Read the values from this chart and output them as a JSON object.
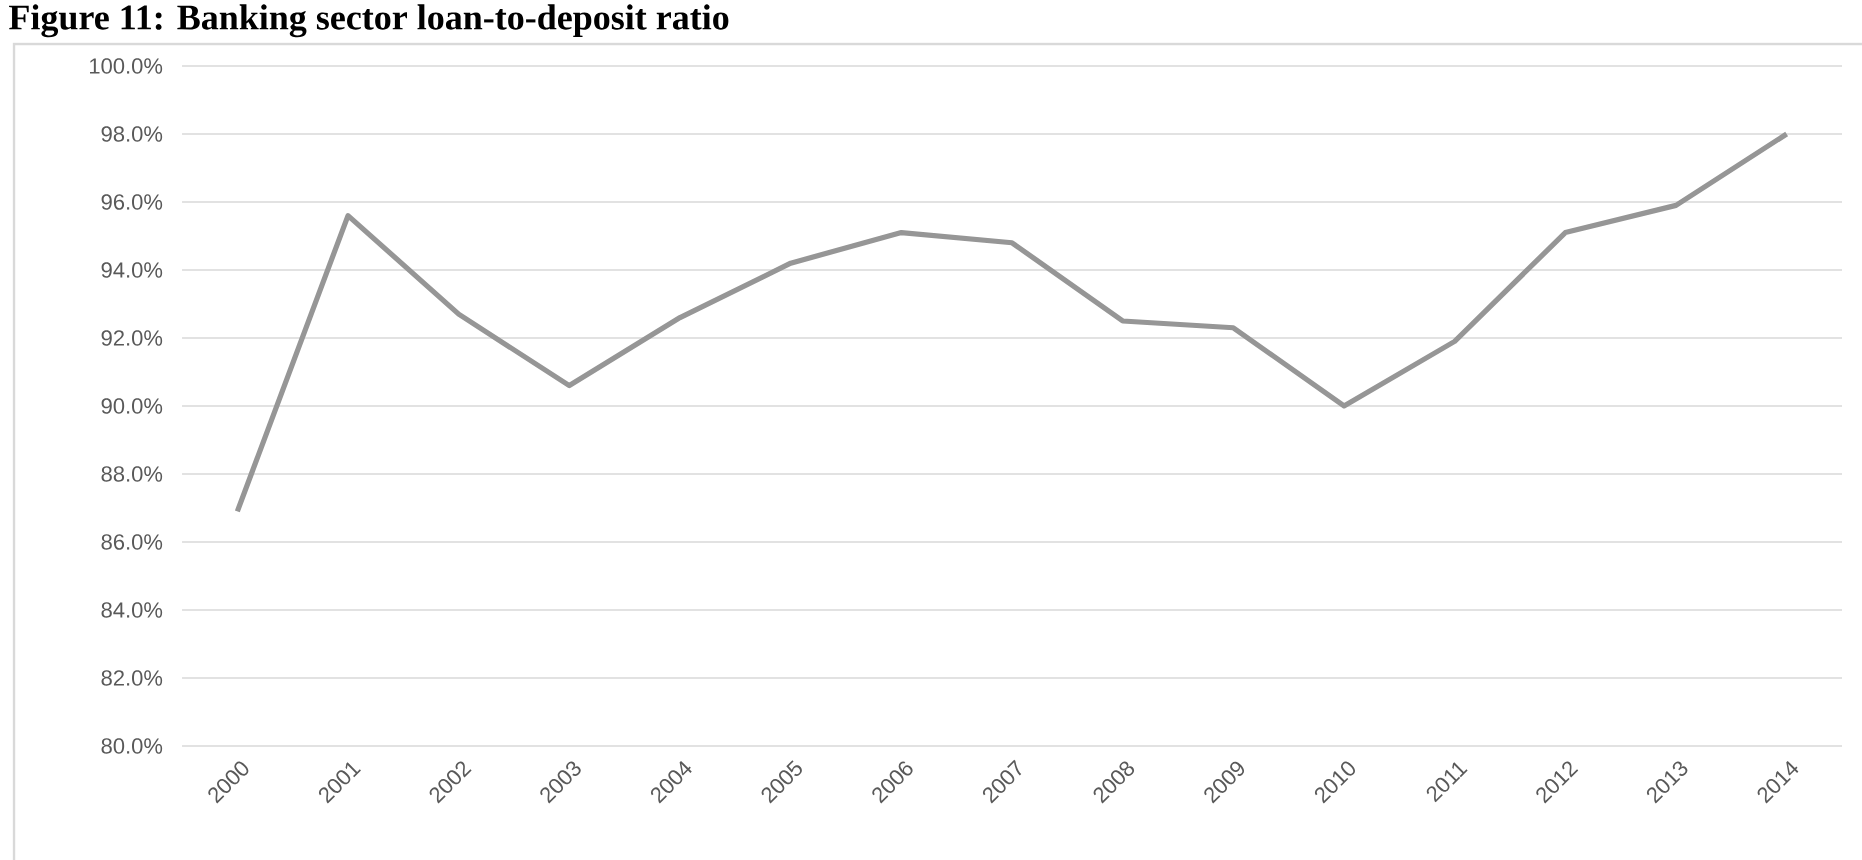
{
  "chart_data": {
    "type": "line",
    "title": "Figure 11: Banking sector loan-to-deposit ratio",
    "categories": [
      "2000",
      "2001",
      "2002",
      "2003",
      "2004",
      "2005",
      "2006",
      "2007",
      "2008",
      "2009",
      "2010",
      "2011",
      "2012",
      "2013",
      "2014"
    ],
    "values": [
      86.9,
      95.6,
      92.7,
      90.6,
      92.6,
      94.2,
      95.1,
      94.8,
      92.5,
      92.3,
      90.0,
      91.9,
      95.1,
      95.9,
      98.0
    ],
    "color": "#969696",
    "ylim": [
      80,
      100
    ],
    "yticks": [
      {
        "value": 80,
        "label": "80.0%"
      },
      {
        "value": 82,
        "label": "82.0%"
      },
      {
        "value": 84,
        "label": "84.0%"
      },
      {
        "value": 86,
        "label": "86.0%"
      },
      {
        "value": 88,
        "label": "88.0%"
      },
      {
        "value": 90,
        "label": "90.0%"
      },
      {
        "value": 92,
        "label": "92.0%"
      },
      {
        "value": 94,
        "label": "94.0%"
      },
      {
        "value": 96,
        "label": "96.0%"
      },
      {
        "value": 98,
        "label": "98.0%"
      },
      {
        "value": 100,
        "label": "100.0%"
      }
    ],
    "grid": "y"
  }
}
